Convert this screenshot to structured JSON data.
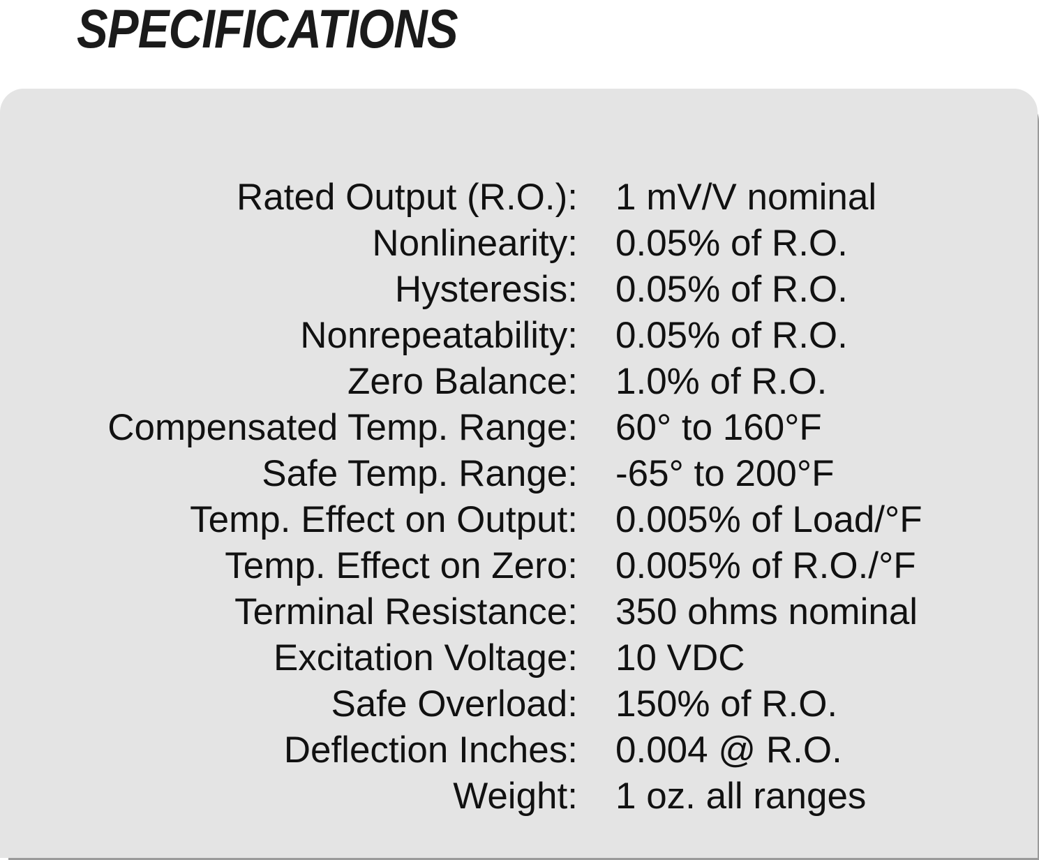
{
  "title": "SPECIFICATIONS",
  "specs": [
    {
      "label": "Rated Output (R.O.):",
      "value": "1 mV/V nominal"
    },
    {
      "label": "Nonlinearity:",
      "value": "0.05% of R.O."
    },
    {
      "label": "Hysteresis:",
      "value": "0.05% of R.O."
    },
    {
      "label": "Nonrepeatability:",
      "value": "0.05% of R.O."
    },
    {
      "label": "Zero Balance:",
      "value": "1.0% of R.O."
    },
    {
      "label": "Compensated Temp. Range:",
      "value": "60° to 160°F"
    },
    {
      "label": "Safe Temp. Range:",
      "value": "-65° to 200°F"
    },
    {
      "label": "Temp. Effect on Output:",
      "value": "0.005% of Load/°F"
    },
    {
      "label": "Temp. Effect on Zero:",
      "value": "0.005% of R.O./°F"
    },
    {
      "label": "Terminal Resistance:",
      "value": "350 ohms nominal"
    },
    {
      "label": "Excitation Voltage:",
      "value": "10 VDC"
    },
    {
      "label": "Safe Overload:",
      "value": "150% of R.O."
    },
    {
      "label": "Deflection Inches:",
      "value": "0.004 @ R.O."
    },
    {
      "label": "Weight:",
      "value": "1 oz. all ranges"
    }
  ]
}
